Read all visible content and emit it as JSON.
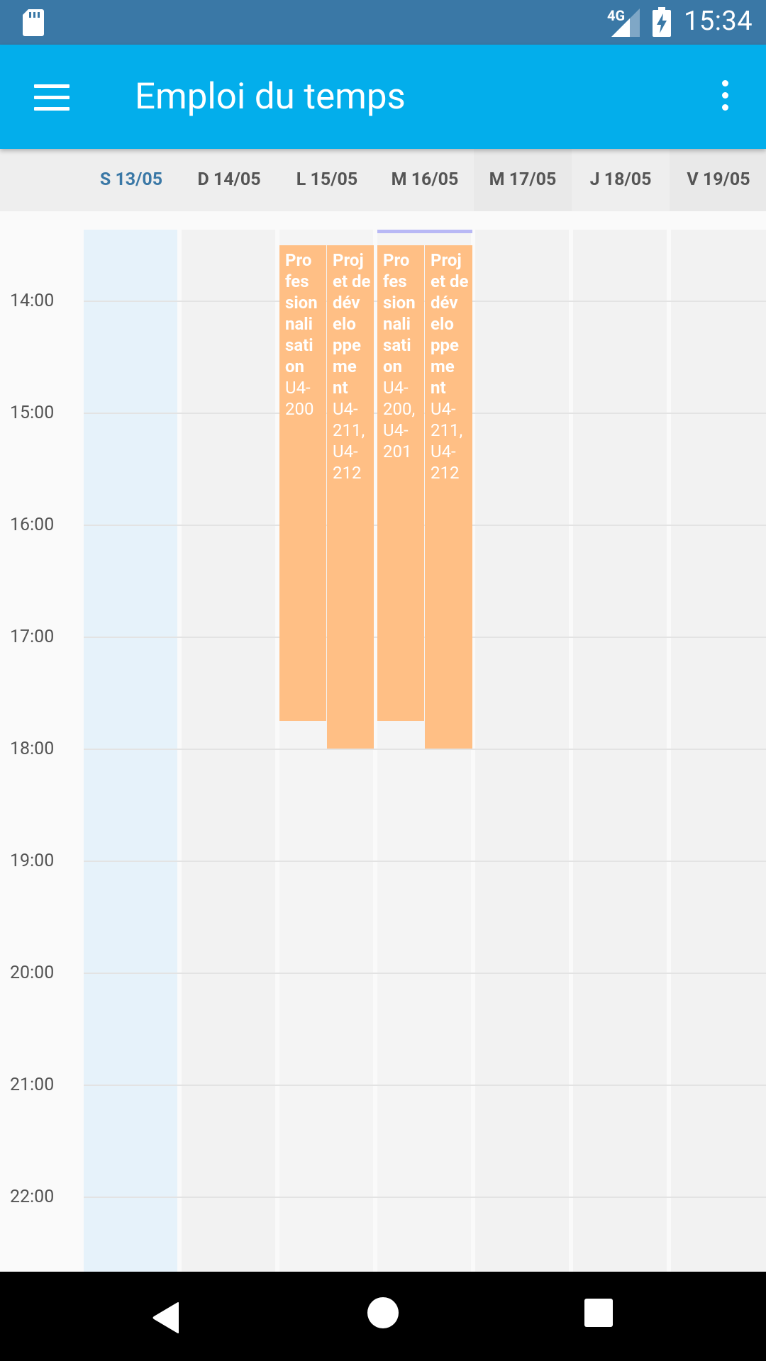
{
  "status_bar": {
    "network": "4G",
    "time": "15:34"
  },
  "app_bar": {
    "title": "Emploi du temps"
  },
  "days": [
    {
      "label": "S 13/05"
    },
    {
      "label": "D 14/05"
    },
    {
      "label": "L 15/05"
    },
    {
      "label": "M 16/05"
    },
    {
      "label": "M 17/05"
    },
    {
      "label": "J 18/05"
    },
    {
      "label": "V 19/05"
    }
  ],
  "hours": [
    "14:00",
    "15:00",
    "16:00",
    "17:00",
    "18:00",
    "19:00",
    "20:00",
    "21:00",
    "22:00"
  ],
  "events": {
    "mon_a": {
      "title": "Pro fes sion nali sati on",
      "room": "U4-200"
    },
    "mon_b": {
      "title": "Proj et de dév elo ppe me nt",
      "room": "U4-211, U4-212"
    },
    "tue_a": {
      "title": "Pro fes sion nali sati on",
      "room": "U4-200, U4-201"
    },
    "tue_b": {
      "title": "Proj et de dév elo ppe me nt",
      "room": "U4-211, U4-212"
    }
  },
  "colors": {
    "status_bar": "#3a78a6",
    "app_bar": "#03aeeb",
    "event": "#ffbf85",
    "today_column": "#e6f2fa",
    "current_time_marker": "#b8b8f5"
  }
}
